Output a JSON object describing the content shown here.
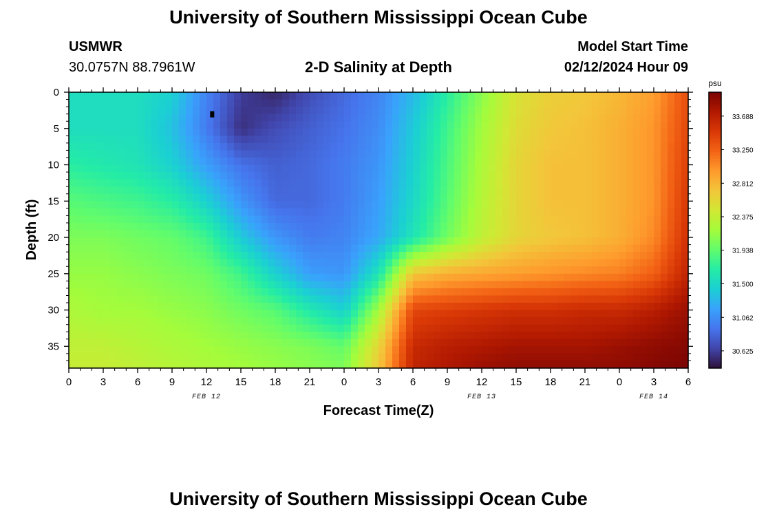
{
  "page": {
    "title": "University of Southern Mississippi Ocean Cube",
    "station": "USMWR",
    "coords": "30.0757N  88.7961W",
    "subtitle": "2-D Salinity at Depth",
    "model_label": "Model Start Time",
    "model_time": "02/12/2024 Hour 09",
    "footer_title": "University of Southern Mississippi Ocean Cube"
  },
  "chart_data": {
    "type": "heatmap",
    "title": "2-D Salinity at Depth",
    "xlabel": "Forecast Time(Z)",
    "ylabel": "Depth (ft)",
    "x_range_hours": [
      0,
      54
    ],
    "x_tick_labels": [
      "0",
      "3",
      "6",
      "9",
      "12",
      "15",
      "18",
      "21",
      "0",
      "3",
      "6",
      "9",
      "12",
      "15",
      "18",
      "21",
      "0",
      "3",
      "6"
    ],
    "date_labels": [
      {
        "hour": 12,
        "text": "FEB 12"
      },
      {
        "hour": 36,
        "text": "FEB 13"
      },
      {
        "hour": 51,
        "text": "FEB 14"
      }
    ],
    "y_range_ft": [
      0,
      38
    ],
    "y_ticks": [
      0,
      5,
      10,
      15,
      20,
      25,
      30,
      35
    ],
    "colorbar": {
      "unit": "psu",
      "min": 30.4,
      "max": 34.0,
      "tick_values": [
        33.688,
        33.25,
        32.812,
        32.375,
        31.938,
        31.5,
        31.062,
        30.625
      ],
      "tick_labels": [
        "33.688",
        "33.250",
        "32.812",
        "32.375",
        "31.938",
        "31.500",
        "31.062",
        "30.625"
      ]
    },
    "colors": [
      "#30123b",
      "#4145ab",
      "#4675ed",
      "#39a2fc",
      "#1bcfd4",
      "#24eca6",
      "#61fc6c",
      "#a4fc3b",
      "#d1e834",
      "#f3c63a",
      "#fe9b2d",
      "#f36315",
      "#d93806",
      "#b11901",
      "#7a0403"
    ],
    "min_marker": {
      "hour": 12.5,
      "depth_ft": 3
    },
    "salinity_rows": [
      {
        "depth_ft": 0,
        "values": [
          31.55,
          31.55,
          31.55,
          31.45,
          31.0,
          30.62,
          30.5,
          30.7,
          30.85,
          31.0,
          31.3,
          31.7,
          32.1,
          32.5,
          32.65,
          32.7,
          32.8,
          32.95,
          33.35
        ]
      },
      {
        "depth_ft": 5,
        "values": [
          31.55,
          31.55,
          31.55,
          31.35,
          30.95,
          30.55,
          30.7,
          30.8,
          30.9,
          31.05,
          31.4,
          31.8,
          32.2,
          32.55,
          32.7,
          32.75,
          32.85,
          33.0,
          33.4
        ]
      },
      {
        "depth_ft": 10,
        "values": [
          31.7,
          31.65,
          31.6,
          31.45,
          31.15,
          30.9,
          30.8,
          30.85,
          30.95,
          31.1,
          31.45,
          31.85,
          32.25,
          32.6,
          32.75,
          32.75,
          32.85,
          33.0,
          33.45
        ]
      },
      {
        "depth_ft": 15,
        "values": [
          31.9,
          31.85,
          31.8,
          31.7,
          31.45,
          31.1,
          30.85,
          30.85,
          30.95,
          31.15,
          31.5,
          31.9,
          32.3,
          32.6,
          32.75,
          32.75,
          32.85,
          33.0,
          33.5
        ]
      },
      {
        "depth_ft": 20,
        "values": [
          32.05,
          32.05,
          32.0,
          31.95,
          31.8,
          31.4,
          31.1,
          30.95,
          31.0,
          31.2,
          31.6,
          32.0,
          32.35,
          32.6,
          32.7,
          32.75,
          32.85,
          33.05,
          33.55
        ]
      },
      {
        "depth_ft": 25,
        "values": [
          32.15,
          32.15,
          32.1,
          32.05,
          32.0,
          31.8,
          31.45,
          31.15,
          31.1,
          31.6,
          32.7,
          32.85,
          32.9,
          32.95,
          33.0,
          33.05,
          33.1,
          33.25,
          33.65
        ]
      },
      {
        "depth_ft": 30,
        "values": [
          32.25,
          32.2,
          32.2,
          32.15,
          32.1,
          32.0,
          31.9,
          31.65,
          31.45,
          32.2,
          33.4,
          33.45,
          33.5,
          33.55,
          33.55,
          33.6,
          33.6,
          33.7,
          33.85
        ]
      },
      {
        "depth_ft": 35,
        "values": [
          32.35,
          32.35,
          32.3,
          32.25,
          32.2,
          32.15,
          32.1,
          32.05,
          31.95,
          32.6,
          33.6,
          33.7,
          33.75,
          33.8,
          33.8,
          33.8,
          33.85,
          33.9,
          33.95
        ]
      },
      {
        "depth_ft": 38,
        "values": [
          32.4,
          32.4,
          32.35,
          32.3,
          32.25,
          32.2,
          32.15,
          32.1,
          32.05,
          32.7,
          33.65,
          33.75,
          33.85,
          33.9,
          33.9,
          33.9,
          33.9,
          33.95,
          34.0
        ]
      }
    ]
  }
}
